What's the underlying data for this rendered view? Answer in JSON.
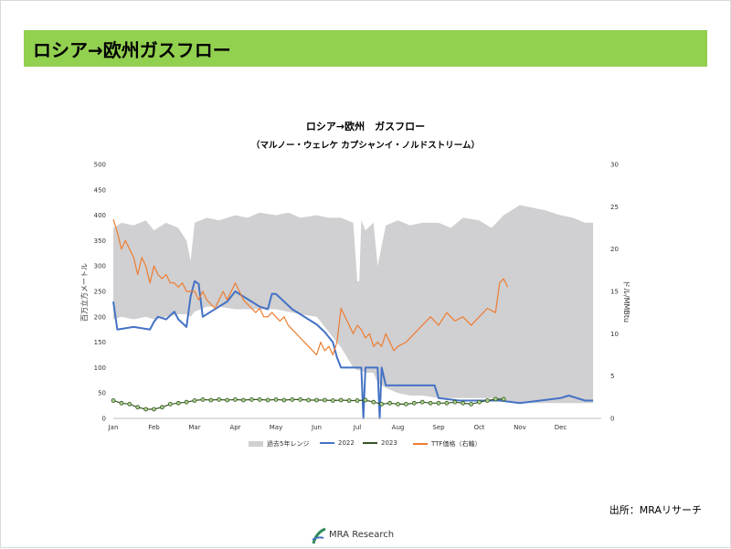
{
  "header": {
    "title": "ロシア→欧州ガスフロー"
  },
  "source": "出所：MRAリサーチ",
  "logo": {
    "text": "MRA Research"
  },
  "chart_data": {
    "type": "line",
    "title": "ロシア→欧州　ガスフロー",
    "subtitle": "（マルノー・ウェレケ カプシャンイ・ノルドストリーム）",
    "ylabel": "百万立方メートル",
    "y2label": "ドル/MMBtu",
    "ylim": [
      0,
      500
    ],
    "y2lim": [
      0,
      30
    ],
    "yticks": [
      0,
      50,
      100,
      150,
      200,
      250,
      300,
      350,
      400,
      450,
      500
    ],
    "y2ticks": [
      0,
      5,
      10,
      15,
      20,
      25,
      30
    ],
    "xlim": [
      0,
      12
    ],
    "months": [
      "Jan",
      "Feb",
      "Mar",
      "Apr",
      "May",
      "Jun",
      "Jul",
      "Aug",
      "Sep",
      "Oct",
      "Nov",
      "Dec"
    ],
    "grid": false,
    "legend": "bottom",
    "series": [
      {
        "name": "過去5年レンジ",
        "kind": "range",
        "axis": "left",
        "color": "#d0cfd1",
        "x": [
          0,
          0.2,
          0.5,
          0.8,
          1,
          1.3,
          1.6,
          1.8,
          1.9,
          2,
          2.3,
          2.6,
          3,
          3.3,
          3.6,
          4,
          4.3,
          4.6,
          5,
          5.3,
          5.6,
          5.9,
          6.0,
          6.05,
          6.1,
          6.2,
          6.4,
          6.5,
          6.7,
          7,
          7.3,
          7.6,
          8,
          8.3,
          8.6,
          9,
          9.3,
          9.6,
          10,
          10.3,
          10.6,
          11,
          11.3,
          11.6,
          11.8
        ],
        "upper": [
          375,
          385,
          380,
          390,
          370,
          385,
          375,
          350,
          310,
          385,
          395,
          390,
          400,
          395,
          405,
          400,
          405,
          395,
          400,
          395,
          395,
          385,
          270,
          270,
          390,
          370,
          385,
          300,
          380,
          390,
          380,
          385,
          385,
          375,
          395,
          390,
          375,
          400,
          420,
          415,
          410,
          400,
          395,
          385,
          385
        ],
        "lower": [
          195,
          200,
          195,
          200,
          195,
          200,
          205,
          205,
          200,
          210,
          220,
          220,
          215,
          215,
          215,
          215,
          210,
          205,
          200,
          170,
          140,
          100,
          95,
          95,
          95,
          90,
          90,
          70,
          60,
          50,
          45,
          45,
          40,
          40,
          40,
          40,
          40,
          35,
          30,
          30,
          30,
          30,
          30,
          30,
          30
        ]
      },
      {
        "name": "2022",
        "kind": "line",
        "axis": "left",
        "color": "#4472c4",
        "width": 2,
        "x": [
          0,
          0.1,
          0.5,
          0.9,
          1,
          1.1,
          1.3,
          1.5,
          1.6,
          1.8,
          1.9,
          2,
          2.1,
          2.2,
          2.4,
          2.6,
          2.8,
          3,
          3.2,
          3.4,
          3.6,
          3.8,
          3.9,
          4,
          4.2,
          4.4,
          4.6,
          4.8,
          5,
          5.2,
          5.4,
          5.5,
          5.6,
          5.8,
          6,
          6.1,
          6.15,
          6.2,
          6.5,
          6.55,
          6.6,
          6.7,
          7,
          7.5,
          7.9,
          8,
          8.5,
          9,
          9.5,
          10,
          10.5,
          11,
          11.2,
          11.4,
          11.6,
          11.8
        ],
        "values": [
          230,
          175,
          180,
          175,
          190,
          200,
          195,
          210,
          195,
          180,
          240,
          270,
          265,
          200,
          210,
          220,
          230,
          250,
          240,
          230,
          220,
          215,
          245,
          245,
          230,
          215,
          205,
          195,
          185,
          170,
          150,
          120,
          100,
          100,
          100,
          100,
          0,
          100,
          100,
          0,
          100,
          65,
          65,
          65,
          65,
          40,
          35,
          35,
          35,
          30,
          35,
          40,
          45,
          40,
          35,
          35
        ]
      },
      {
        "name": "2023",
        "kind": "markers",
        "axis": "left",
        "color": "#375623",
        "marker_fill": "#a9d18e",
        "x": [
          0,
          0.2,
          0.4,
          0.6,
          0.8,
          1,
          1.2,
          1.4,
          1.6,
          1.8,
          2,
          2.2,
          2.4,
          2.6,
          2.8,
          3,
          3.2,
          3.4,
          3.6,
          3.8,
          4,
          4.2,
          4.4,
          4.6,
          4.8,
          5,
          5.2,
          5.4,
          5.6,
          5.8,
          6,
          6.2,
          6.4,
          6.6,
          6.8,
          7,
          7.2,
          7.4,
          7.6,
          7.8,
          8,
          8.2,
          8.4,
          8.6,
          8.8,
          9,
          9.2,
          9.4,
          9.6
        ],
        "values": [
          35,
          30,
          28,
          22,
          18,
          18,
          22,
          28,
          30,
          32,
          35,
          37,
          36,
          37,
          36,
          37,
          36,
          37,
          37,
          36,
          37,
          36,
          37,
          37,
          36,
          36,
          36,
          35,
          36,
          35,
          35,
          36,
          32,
          28,
          30,
          28,
          28,
          30,
          32,
          30,
          30,
          30,
          32,
          30,
          28,
          32,
          35,
          38,
          38
        ]
      },
      {
        "name": "TTF価格（右軸）",
        "kind": "line",
        "axis": "right",
        "color": "#ed7d31",
        "width": 1.2,
        "x": [
          0,
          0.1,
          0.2,
          0.3,
          0.4,
          0.5,
          0.6,
          0.7,
          0.8,
          0.9,
          1,
          1.1,
          1.2,
          1.3,
          1.4,
          1.5,
          1.6,
          1.7,
          1.8,
          1.9,
          2,
          2.1,
          2.2,
          2.3,
          2.4,
          2.5,
          2.6,
          2.7,
          2.8,
          2.9,
          3,
          3.1,
          3.2,
          3.3,
          3.4,
          3.5,
          3.6,
          3.7,
          3.8,
          3.9,
          4,
          4.1,
          4.2,
          4.3,
          4.4,
          4.5,
          4.6,
          4.7,
          4.8,
          4.9,
          5,
          5.1,
          5.2,
          5.3,
          5.4,
          5.5,
          5.6,
          5.7,
          5.8,
          5.9,
          6,
          6.1,
          6.2,
          6.3,
          6.4,
          6.5,
          6.6,
          6.7,
          6.8,
          6.9,
          7,
          7.2,
          7.4,
          7.6,
          7.8,
          8,
          8.2,
          8.4,
          8.6,
          8.8,
          9,
          9.2,
          9.4,
          9.5,
          9.6,
          9.7
        ],
        "values": [
          23.5,
          22,
          20,
          21,
          20,
          19,
          17,
          19,
          18,
          16,
          18,
          17,
          16.5,
          17,
          16,
          16,
          15.5,
          16,
          15,
          15,
          15,
          14,
          15,
          14,
          13.5,
          13,
          14,
          15,
          14,
          15,
          16,
          15,
          14,
          13.5,
          13,
          12.5,
          13,
          12,
          12,
          12.5,
          12,
          11.5,
          12,
          11,
          10.5,
          10,
          9.5,
          9,
          8.5,
          8,
          7.5,
          9,
          8,
          8.5,
          7.5,
          9,
          13,
          12,
          11,
          10,
          11,
          10.5,
          9.5,
          10,
          8.5,
          9,
          8.5,
          10,
          9,
          8,
          8.5,
          9,
          10,
          11,
          12,
          11,
          12.5,
          11.5,
          12,
          11,
          12,
          13,
          12.5,
          16,
          16.5,
          15.5
        ]
      }
    ]
  }
}
